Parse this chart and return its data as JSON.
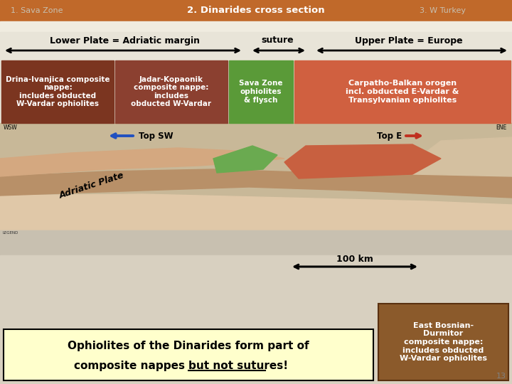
{
  "slide_bg": "#d8d0c0",
  "title_bar_color": "#c0692a",
  "header_bg": "#f0ece0",
  "content_bg": "#e8e4d8",
  "label1": "1. Sava Zone",
  "label2": "2. Dinarides cross section",
  "label3": "3. W Turkey",
  "lower_plate_text": "Lower Plate = Adriatic margin",
  "suture_text": "suture",
  "upper_plate_text": "Upper Plate = Europe",
  "box1_color": "#7b3520",
  "box1_text": "Drina-Ivanjica composite\nnappe:\nincludes obducted\nW-Vardar ophiolites",
  "box1_text_color": "#ffffff",
  "box2_color": "#8b4030",
  "box2_text": "Jadar-Kopaonik\ncomposite nappe:\nincludes\nobducted W-Vardar",
  "box2_text_color": "#ffffff",
  "box3_color": "#5a9a38",
  "box3_text": "Sava Zone\nophiolites\n& flysch",
  "box3_text_color": "#ffffff",
  "box4_color": "#d06040",
  "box4_text": "Carpatho-Balkan orogen\nincl. obducted E-Vardar &\nTransylvanian ophiolites",
  "box4_text_color": "#ffffff",
  "top_sw_text": "Top SW",
  "top_e_text": "Top E",
  "adriatic_plate_text": "Adriatic Plate",
  "bottom_box_color": "#ffffcc",
  "bottom_box_text1": "Ophiolites of the Dinarides form part of",
  "bottom_box_text2a": "composite nappes ",
  "bottom_box_text2b": "but not sutures!",
  "right_box_color": "#8b5a2b",
  "right_box_text": "East Bosnian-\nDurmitor\ncomposite nappe:\nincludes obducted\nW-Vardar ophiolites",
  "right_box_text_color": "#ffffff",
  "scale_text": "100 km",
  "page_num": "13"
}
